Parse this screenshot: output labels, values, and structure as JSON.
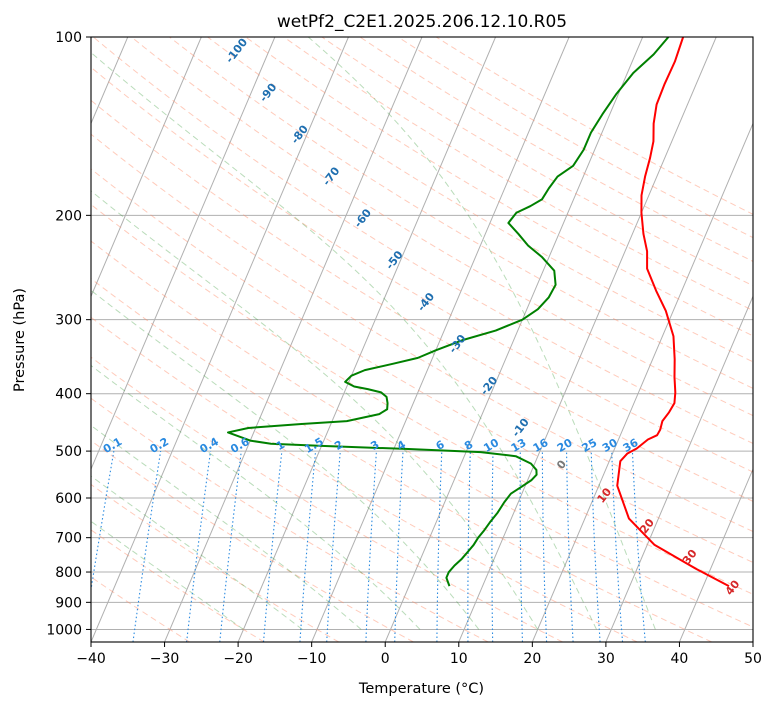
{
  "chart_data": {
    "type": "line",
    "title": "wetPf2_C2E1.2025.206.12.10.R05",
    "xlabel": "Temperature (°C)",
    "ylabel": "Pressure (hPa)",
    "xlim": [
      -40,
      50
    ],
    "ylim": [
      1050,
      100
    ],
    "y_scale": "log",
    "grid": true,
    "x_ticks": [
      "−40",
      "−30",
      "−20",
      "−10",
      "0",
      "10",
      "20",
      "30",
      "40",
      "50"
    ],
    "y_ticks": [
      {
        "p": 100,
        "label": "100"
      },
      {
        "p": 200,
        "label": "200"
      },
      {
        "p": 300,
        "label": "300"
      },
      {
        "p": 400,
        "label": "400"
      },
      {
        "p": 500,
        "label": "500"
      },
      {
        "p": 600,
        "label": "600"
      },
      {
        "p": 700,
        "label": "700"
      },
      {
        "p": 800,
        "label": "800"
      },
      {
        "p": 900,
        "label": "900"
      },
      {
        "p": 1000,
        "label": "1000"
      }
    ],
    "series": [
      {
        "color": "#ff0000",
        "points": [
          [
            43.5,
            845
          ],
          [
            38,
            790
          ],
          [
            31,
            720
          ],
          [
            26,
            650
          ],
          [
            22.5,
            572
          ],
          [
            21.5,
            520
          ],
          [
            22,
            505
          ],
          [
            23,
            495
          ],
          [
            24,
            478
          ],
          [
            25,
            470
          ],
          [
            25.1,
            460
          ],
          [
            24.9,
            445
          ],
          [
            25.3,
            430
          ],
          [
            25.5,
            415
          ],
          [
            25,
            398
          ],
          [
            24,
            375
          ],
          [
            23,
            350
          ],
          [
            21.5,
            320
          ],
          [
            19,
            290
          ],
          [
            16.5,
            268
          ],
          [
            14,
            246
          ],
          [
            13,
            230
          ],
          [
            11.5,
            215
          ],
          [
            10,
            198
          ],
          [
            9,
            185
          ],
          [
            8.4,
            172
          ],
          [
            8,
            160
          ],
          [
            7.5,
            150
          ],
          [
            6.5,
            140
          ],
          [
            5.8,
            130
          ],
          [
            5.7,
            120
          ],
          [
            5.8,
            110
          ],
          [
            5.5,
            100
          ]
        ]
      },
      {
        "color": "#008000",
        "points": [
          [
            5.5,
            845
          ],
          [
            5,
            830
          ],
          [
            4.6,
            818
          ],
          [
            4.6,
            800
          ],
          [
            5,
            780
          ],
          [
            5.6,
            760
          ],
          [
            6,
            740
          ],
          [
            6.4,
            720
          ],
          [
            6.6,
            700
          ],
          [
            7,
            680
          ],
          [
            7.3,
            660
          ],
          [
            7.8,
            635
          ],
          [
            8.1,
            610
          ],
          [
            8.5,
            590
          ],
          [
            9.5,
            575
          ],
          [
            10.5,
            560
          ],
          [
            10.9,
            548
          ],
          [
            10.6,
            538
          ],
          [
            9.5,
            525
          ],
          [
            7,
            510
          ],
          [
            2,
            502
          ],
          [
            -8,
            496
          ],
          [
            -20,
            490
          ],
          [
            -27,
            486
          ],
          [
            -30,
            480
          ],
          [
            -33.5,
            465
          ],
          [
            -31,
            457
          ],
          [
            -24,
            450
          ],
          [
            -18,
            445
          ],
          [
            -14,
            433
          ],
          [
            -13.2,
            425
          ],
          [
            -13.5,
            415
          ],
          [
            -14,
            405
          ],
          [
            -15,
            398
          ],
          [
            -17,
            393
          ],
          [
            -19,
            389
          ],
          [
            -20.5,
            382
          ],
          [
            -20,
            373
          ],
          [
            -18.5,
            365
          ],
          [
            -15,
            356
          ],
          [
            -12,
            348
          ],
          [
            -10,
            338
          ],
          [
            -7,
            325
          ],
          [
            -3,
            313
          ],
          [
            0,
            300
          ],
          [
            1.5,
            288
          ],
          [
            2.3,
            275
          ],
          [
            2.5,
            262
          ],
          [
            1.5,
            248
          ],
          [
            -1,
            235
          ],
          [
            -3.5,
            225
          ],
          [
            -5.5,
            215
          ],
          [
            -7.5,
            206
          ],
          [
            -7,
            198
          ],
          [
            -5.5,
            193
          ],
          [
            -4.3,
            188
          ],
          [
            -4,
            180
          ],
          [
            -3.5,
            172
          ],
          [
            -2,
            165
          ],
          [
            -1.5,
            155
          ],
          [
            -1.5,
            145
          ],
          [
            -1,
            135
          ],
          [
            -0.3,
            125
          ],
          [
            0.8,
            115
          ],
          [
            2.5,
            107
          ],
          [
            3.5,
            100
          ]
        ]
      }
    ],
    "mixing_ratio_labels": [
      "0.1",
      "0.2",
      "0.4",
      "0.6",
      "1",
      "1.5",
      "2",
      "3",
      "4",
      "6",
      "8",
      "10",
      "13",
      "16",
      "20",
      "25",
      "30",
      "36"
    ],
    "dry_adiabat_labels": [
      "-100",
      "-90",
      "-80",
      "-70",
      "-60",
      "-50",
      "-40",
      "-30",
      "-20",
      "-10",
      "0",
      "10",
      "20",
      "30",
      "40"
    ]
  },
  "colors": {
    "temperature": "#ff0000",
    "dewpoint": "#008000",
    "grid": "#b0b0b0",
    "dry_adiabat": "#ff8c69",
    "moist_adiabat": "#3a9a3a",
    "mixing_ratio": "#2a8ae0",
    "adiabat_label_cold": "#1f6fb0",
    "adiabat_label_warm": "#d62728",
    "adiabat_label_zero": "#777777"
  }
}
